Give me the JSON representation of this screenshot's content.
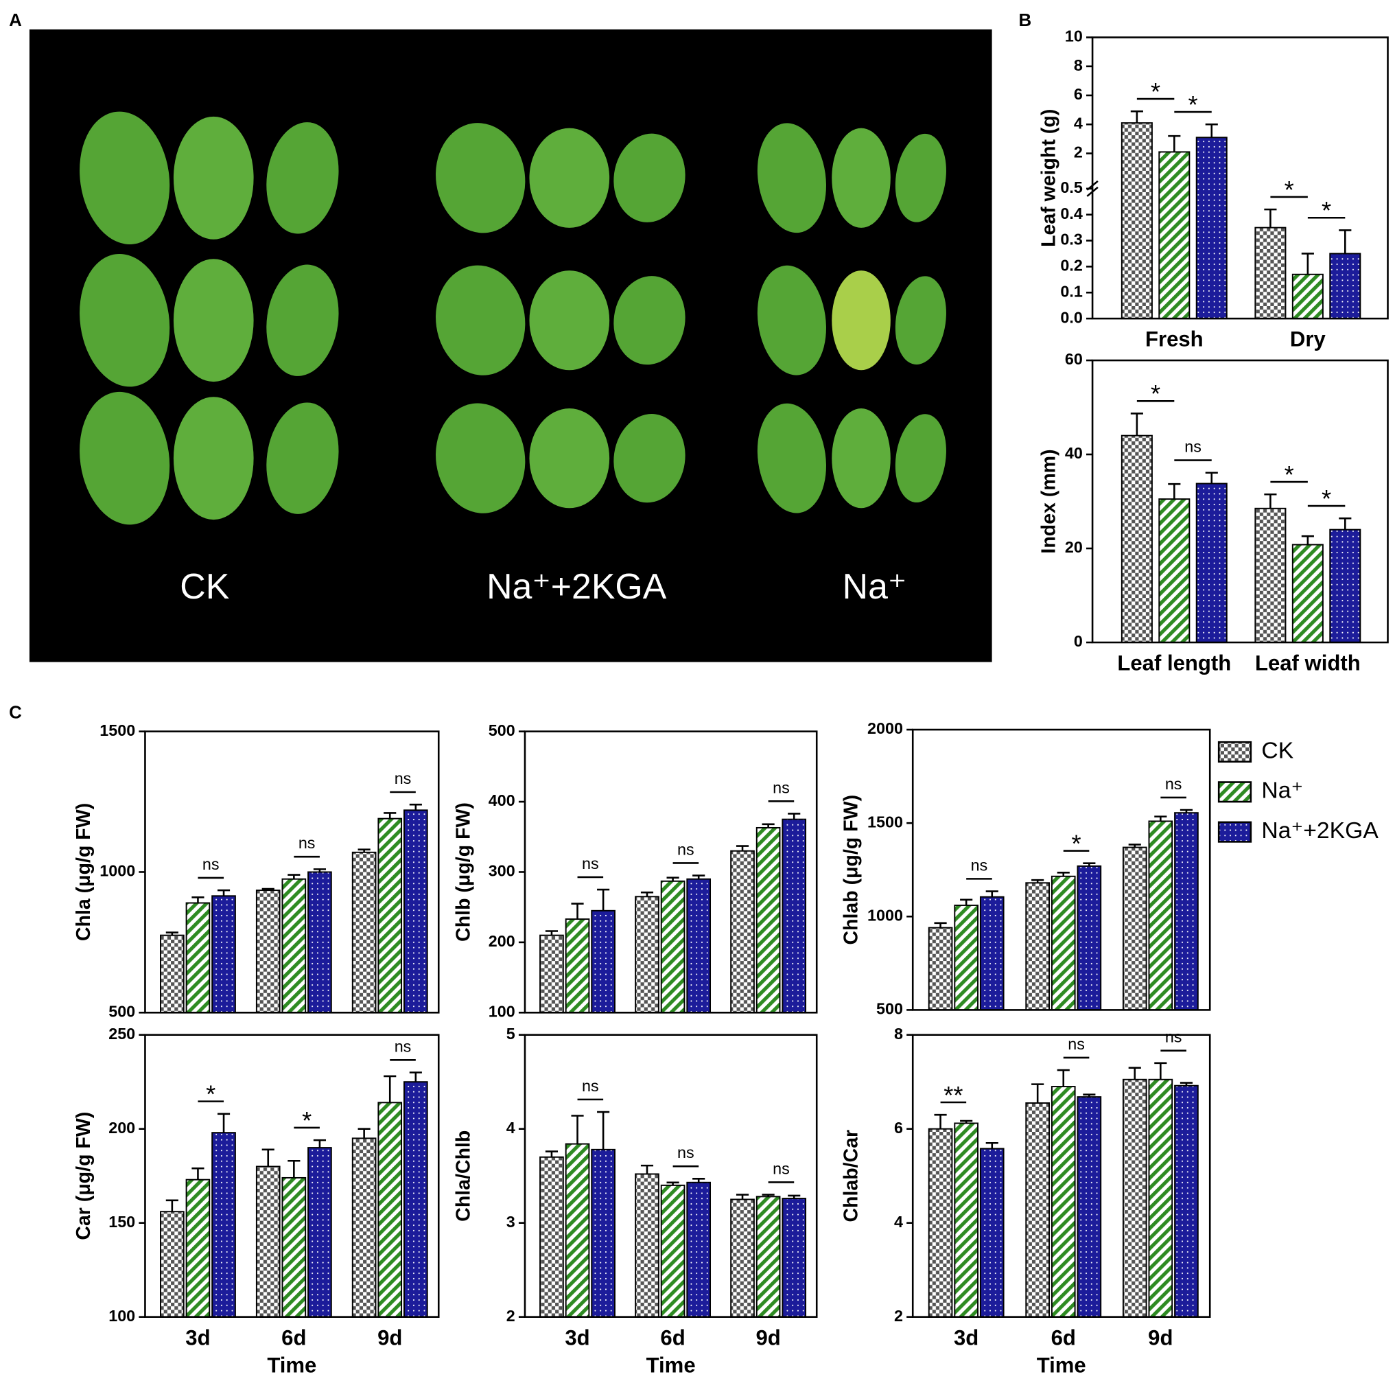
{
  "panel_labels": [
    "A",
    "B",
    "C"
  ],
  "photo_labels": [
    "CK",
    "Na⁺+2KGA",
    "Na⁺"
  ],
  "legend": [
    {
      "name": "CK",
      "color": "#555555"
    },
    {
      "name": "Na⁺",
      "color": "#2e8b22"
    },
    {
      "name": "Na⁺+2KGA",
      "color": "#1c1c9a"
    }
  ],
  "chart_data": [
    {
      "type": "bar",
      "ylabel": "Leaf weight (g)",
      "categories": [
        "Fresh",
        "Dry"
      ],
      "ybreak": {
        "lower": {
          "ylim": [
            0,
            0.5
          ],
          "yticks": [
            {
              "value": 0,
              "label": "0.0"
            },
            0.1,
            0.2,
            0.3,
            0.4,
            0.5
          ]
        },
        "upper": {
          "ylim": [
            0.5,
            10
          ],
          "yticks": [
            2,
            4,
            6,
            8,
            10
          ]
        }
      },
      "series": [
        {
          "values": [
            4.1,
            0.35
          ],
          "errors": [
            0.8,
            0.07
          ]
        },
        {
          "values": [
            2.1,
            0.17
          ],
          "errors": [
            1.1,
            0.08
          ]
        },
        {
          "values": [
            3.1,
            0.25
          ],
          "errors": [
            0.9,
            0.09
          ]
        }
      ],
      "annotations": [
        {
          "text": "*",
          "category": "Fresh",
          "pair": [
            "CK",
            "Na⁺"
          ]
        },
        {
          "text": "*",
          "category": "Fresh",
          "pair": [
            "Na⁺",
            "Na⁺+2KGA"
          ]
        },
        {
          "text": "*",
          "category": "Dry",
          "pair": [
            "CK",
            "Na⁺"
          ]
        },
        {
          "text": "*",
          "category": "Dry",
          "pair": [
            "Na⁺",
            "Na⁺+2KGA"
          ]
        }
      ]
    },
    {
      "type": "bar",
      "ylabel": "Index (mm)",
      "categories": [
        "Leaf length",
        "Leaf width"
      ],
      "ylim": [
        0,
        60
      ],
      "yticks": [
        0,
        20,
        40,
        60
      ],
      "series": [
        {
          "values": [
            44,
            28.5
          ],
          "errors": [
            4.7,
            3
          ]
        },
        {
          "values": [
            30.5,
            20.8
          ],
          "errors": [
            3.2,
            1.8
          ]
        },
        {
          "values": [
            33.8,
            24
          ],
          "errors": [
            2.3,
            2.4
          ]
        }
      ],
      "annotations": [
        {
          "text": "*",
          "category": "Leaf length",
          "pair": [
            "CK",
            "Na⁺"
          ]
        },
        {
          "text": "ns",
          "category": "Leaf length",
          "pair": [
            "Na⁺",
            "Na⁺+2KGA"
          ]
        },
        {
          "text": "*",
          "category": "Leaf width",
          "pair": [
            "CK",
            "Na⁺"
          ]
        },
        {
          "text": "*",
          "category": "Leaf width",
          "pair": [
            "Na⁺",
            "Na⁺+2KGA"
          ]
        }
      ]
    },
    {
      "type": "bar",
      "ylabel": "Chla (μg/g FW)",
      "categories": [
        null,
        null,
        null
      ],
      "ylim": [
        500,
        1500
      ],
      "yticks": [
        500,
        1000,
        1500
      ],
      "series": [
        {
          "values": [
            775,
            935,
            1070
          ],
          "errors": [
            10,
            5,
            10
          ]
        },
        {
          "values": [
            890,
            975,
            1190
          ],
          "errors": [
            20,
            15,
            20
          ]
        },
        {
          "values": [
            915,
            1000,
            1220
          ],
          "errors": [
            20,
            10,
            20
          ]
        }
      ],
      "annotations": [
        {
          "text": "ns",
          "category": 0,
          "pair": [
            "Na⁺",
            "Na⁺+2KGA"
          ]
        },
        {
          "text": "ns",
          "category": 1,
          "pair": [
            "Na⁺",
            "Na⁺+2KGA"
          ]
        },
        {
          "text": "ns",
          "category": 2,
          "pair": [
            "Na⁺",
            "Na⁺+2KGA"
          ]
        }
      ]
    },
    {
      "type": "bar",
      "ylabel": "Chlb (μg/g FW)",
      "categories": [
        null,
        null,
        null
      ],
      "ylim": [
        100,
        500
      ],
      "yticks": [
        100,
        200,
        300,
        400,
        500
      ],
      "series": [
        {
          "values": [
            210,
            265,
            330
          ],
          "errors": [
            6,
            6,
            7
          ]
        },
        {
          "values": [
            233,
            287,
            363
          ],
          "errors": [
            22,
            5,
            5
          ]
        },
        {
          "values": [
            245,
            290,
            375
          ],
          "errors": [
            30,
            5,
            8
          ]
        }
      ],
      "annotations": [
        {
          "text": "ns",
          "category": 0,
          "pair": [
            "Na⁺",
            "Na⁺+2KGA"
          ]
        },
        {
          "text": "ns",
          "category": 1,
          "pair": [
            "Na⁺",
            "Na⁺+2KGA"
          ]
        },
        {
          "text": "ns",
          "category": 2,
          "pair": [
            "Na⁺",
            "Na⁺+2KGA"
          ]
        }
      ]
    },
    {
      "type": "bar",
      "ylabel": "Chlab (μg/g FW)",
      "categories": [
        null,
        null,
        null
      ],
      "ylim": [
        500,
        2000
      ],
      "yticks": [
        500,
        1000,
        1500,
        2000
      ],
      "series": [
        {
          "values": [
            940,
            1180,
            1370
          ],
          "errors": [
            25,
            15,
            15
          ]
        },
        {
          "values": [
            1060,
            1215,
            1510
          ],
          "errors": [
            30,
            20,
            25
          ]
        },
        {
          "values": [
            1105,
            1270,
            1555
          ],
          "errors": [
            30,
            15,
            15
          ]
        }
      ],
      "annotations": [
        {
          "text": "ns",
          "category": 0,
          "pair": [
            "Na⁺",
            "Na⁺+2KGA"
          ]
        },
        {
          "text": "*",
          "category": 1,
          "pair": [
            "Na⁺",
            "Na⁺+2KGA"
          ]
        },
        {
          "text": "ns",
          "category": 2,
          "pair": [
            "Na⁺",
            "Na⁺+2KGA"
          ]
        }
      ]
    },
    {
      "type": "bar",
      "ylabel": "Car (μg/g FW)",
      "xlabel": "Time",
      "categories": [
        "3d",
        "6d",
        "9d"
      ],
      "ylim": [
        100,
        250
      ],
      "yticks": [
        100,
        150,
        200,
        250
      ],
      "series": [
        {
          "values": [
            156,
            180,
            195
          ],
          "errors": [
            6,
            9,
            5
          ]
        },
        {
          "values": [
            173,
            174,
            214
          ],
          "errors": [
            6,
            9,
            14
          ]
        },
        {
          "values": [
            198,
            190,
            225
          ],
          "errors": [
            10,
            4,
            5
          ]
        }
      ],
      "annotations": [
        {
          "text": "*",
          "category": "3d",
          "pair": [
            "Na⁺",
            "Na⁺+2KGA"
          ]
        },
        {
          "text": "*",
          "category": "6d",
          "pair": [
            "Na⁺",
            "Na⁺+2KGA"
          ]
        },
        {
          "text": "ns",
          "category": "9d",
          "pair": [
            "Na⁺",
            "Na⁺+2KGA"
          ]
        }
      ]
    },
    {
      "type": "bar",
      "ylabel": "Chla/Chlb",
      "xlabel": "Time",
      "categories": [
        "3d",
        "6d",
        "9d"
      ],
      "ylim": [
        2,
        5
      ],
      "yticks": [
        2,
        3,
        4,
        5
      ],
      "series": [
        {
          "values": [
            3.7,
            3.52,
            3.25
          ],
          "errors": [
            0.06,
            0.09,
            0.05
          ]
        },
        {
          "values": [
            3.84,
            3.4,
            3.28
          ],
          "errors": [
            0.3,
            0.03,
            0.02
          ]
        },
        {
          "values": [
            3.78,
            3.43,
            3.26
          ],
          "errors": [
            0.4,
            0.04,
            0.03
          ]
        }
      ],
      "annotations": [
        {
          "text": "ns",
          "category": "3d",
          "pair": [
            "Na⁺",
            "Na⁺+2KGA"
          ]
        },
        {
          "text": "ns",
          "category": "6d",
          "pair": [
            "Na⁺",
            "Na⁺+2KGA"
          ]
        },
        {
          "text": "ns",
          "category": "9d",
          "pair": [
            "Na⁺",
            "Na⁺+2KGA"
          ]
        }
      ]
    },
    {
      "type": "bar",
      "ylabel": "Chlab/Car",
      "xlabel": "Time",
      "categories": [
        "3d",
        "6d",
        "9d"
      ],
      "ylim": [
        2,
        8
      ],
      "yticks": [
        2,
        4,
        6,
        8
      ],
      "series": [
        {
          "values": [
            6.0,
            6.55,
            7.05
          ],
          "errors": [
            0.3,
            0.4,
            0.25
          ]
        },
        {
          "values": [
            6.12,
            6.9,
            7.05
          ],
          "errors": [
            0.05,
            0.35,
            0.35
          ]
        },
        {
          "values": [
            5.58,
            6.68,
            6.92
          ],
          "errors": [
            0.12,
            0.05,
            0.06
          ]
        }
      ],
      "annotations": [
        {
          "text": "**",
          "category": "3d",
          "pair": [
            "CK",
            "Na⁺"
          ]
        },
        {
          "text": "ns",
          "category": "6d",
          "pair": [
            "Na⁺",
            "Na⁺+2KGA"
          ]
        },
        {
          "text": "ns",
          "category": "9d",
          "pair": [
            "Na⁺",
            "Na⁺+2KGA"
          ]
        }
      ]
    }
  ]
}
